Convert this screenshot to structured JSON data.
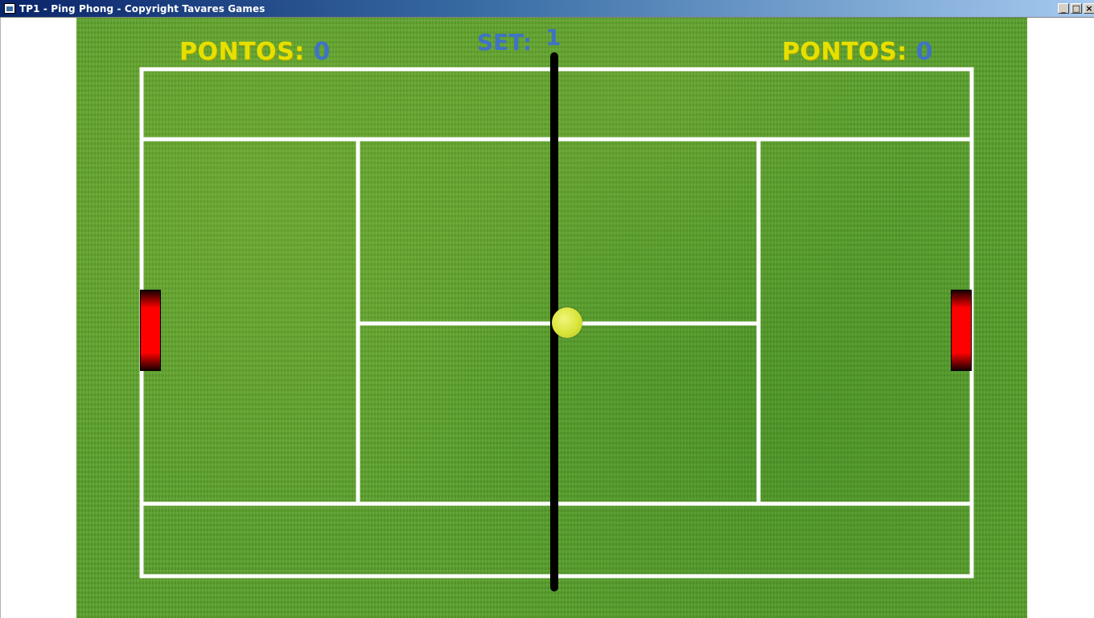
{
  "window": {
    "title": "TP1 - Ping Phong - Copyright Tavares Games",
    "minimize_glyph": "_",
    "maximize_glyph": "□",
    "close_glyph": "×"
  },
  "scoreboard": {
    "left": {
      "label": "PONTOS:",
      "value": "0"
    },
    "right": {
      "label": "PONTOS:",
      "value": "0"
    },
    "set": {
      "label": "SET:",
      "value": "1"
    }
  },
  "colors": {
    "score_label": "#e6e000",
    "score_value": "#3f73c4",
    "court_line": "#ffffff",
    "net": "#000000",
    "paddle": "#ff0000",
    "ball": "#d8e43a",
    "grass": "#5aa02c"
  },
  "icons": [
    "app-icon",
    "minimize-icon",
    "maximize-icon",
    "close-icon"
  ]
}
